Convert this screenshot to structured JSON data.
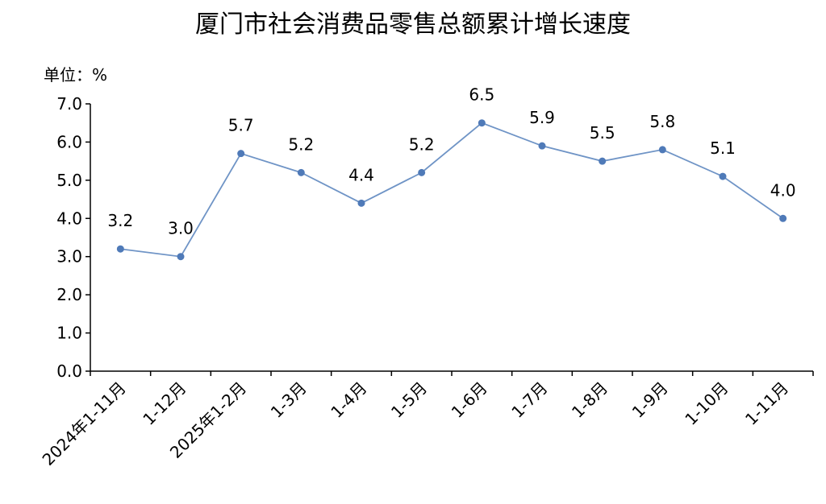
{
  "chart_data": {
    "type": "line",
    "title": "厦门市社会消费品零售总额累计增长速度",
    "unit_label": "单位：%",
    "categories": [
      "2024年1-11月",
      "1-12月",
      "2025年1-2月",
      "1-3月",
      "1-4月",
      "1-5月",
      "1-6月",
      "1-7月",
      "1-8月",
      "1-9月",
      "1-10月",
      "1-11月"
    ],
    "series": [
      {
        "values": [
          3.2,
          3.0,
          5.7,
          5.2,
          4.4,
          5.2,
          6.5,
          5.9,
          5.5,
          5.8,
          5.1,
          4.0
        ]
      }
    ],
    "data_labels": [
      "3.2",
      "3.0",
      "5.7",
      "5.2",
      "4.4",
      "5.2",
      "6.5",
      "5.9",
      "5.5",
      "5.8",
      "5.1",
      "4.0"
    ],
    "ylim": [
      0,
      7
    ],
    "yticks": [
      "0.0",
      "1.0",
      "2.0",
      "3.0",
      "4.0",
      "5.0",
      "6.0",
      "7.0"
    ],
    "grid": false,
    "colors": {
      "line": "#6f94c6",
      "marker": "#4f7ab8",
      "axis": "#000000"
    }
  }
}
